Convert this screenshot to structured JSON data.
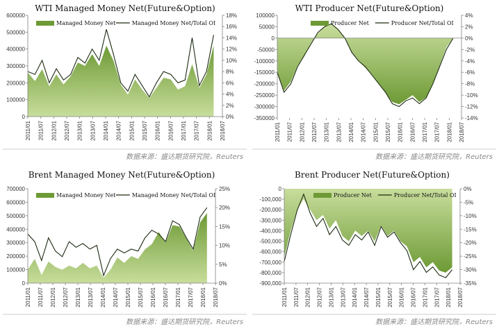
{
  "colors": {
    "area_light": "#c8dd9c",
    "area_dark": "#6d9a35",
    "line": "#1c2a12",
    "axis": "#808080",
    "divider": "#bdbdbd"
  },
  "chart_data": [
    {
      "type": "area",
      "title": "WTI Managed Money Net(Future&Option)",
      "legend": [
        "Managed Money Net",
        "Managed Money Net/Total OI"
      ],
      "source": "数据来源：盛达期货研究院，Reuters",
      "x": [
        "2011/01",
        "2011/07",
        "2012/01",
        "2012/07",
        "2013/01",
        "2013/07",
        "2014/01",
        "2014/07",
        "2015/01",
        "2015/07",
        "2016/01",
        "2016/07",
        "2017/01",
        "2017/07",
        "2018/01",
        "2018/07"
      ],
      "ylim_left": [
        0,
        600000
      ],
      "yticks_left": [
        "0",
        "100000",
        "200000",
        "300000",
        "400000",
        "500000",
        "600000"
      ],
      "ylim_right": [
        0,
        18
      ],
      "yticks_right": [
        "0%",
        "2%",
        "4%",
        "6%",
        "8%",
        "10%",
        "12%",
        "14%",
        "16%",
        "18%"
      ],
      "area_values": [
        260000,
        210000,
        280000,
        180000,
        250000,
        190000,
        240000,
        320000,
        300000,
        370000,
        300000,
        420000,
        330000,
        190000,
        130000,
        220000,
        160000,
        110000,
        170000,
        230000,
        220000,
        160000,
        180000,
        310000,
        170000,
        250000,
        420000
      ],
      "line_values": [
        8.0,
        7.5,
        10.0,
        6.0,
        8.5,
        6.5,
        7.5,
        10.5,
        9.5,
        12.0,
        10.0,
        15.5,
        11.0,
        6.0,
        4.5,
        7.5,
        5.5,
        3.5,
        6.0,
        8.0,
        7.5,
        6.0,
        6.5,
        14.0,
        5.5,
        8.0,
        14.5
      ]
    },
    {
      "type": "area",
      "title": "WTI Producer Net(Future&Option)",
      "legend": [
        "Producer Net",
        "Producer Net/Total OI"
      ],
      "source": "数据来源：盛达期货研究院，Reuters",
      "x": [
        "2011/01",
        "2011/07",
        "2012/01",
        "2012/07",
        "2013/01",
        "2013/07",
        "2014/01",
        "2014/07",
        "2015/01",
        "2015/07",
        "2016/01",
        "2016/07",
        "2017/01",
        "2017/07",
        "2018/01",
        "2018/07"
      ],
      "ylim_left": [
        -350000,
        100000
      ],
      "yticks_left": [
        "-350000",
        "-300000",
        "-250000",
        "-200000",
        "-150000",
        "-100000",
        "-50000",
        "0",
        "50000",
        "100000"
      ],
      "ylim_right": [
        -14,
        4
      ],
      "yticks_right": [
        "-14%",
        "-12%",
        "-10%",
        "-8%",
        "-6%",
        "-4%",
        "-2%",
        "0%",
        "2%",
        "4%"
      ],
      "area_values": [
        -150000,
        -230000,
        -190000,
        -120000,
        -80000,
        -20000,
        20000,
        50000,
        60000,
        40000,
        0,
        -60000,
        -100000,
        -130000,
        -160000,
        -200000,
        -240000,
        -280000,
        -290000,
        -270000,
        -250000,
        -280000,
        -260000,
        -200000,
        -120000,
        -40000,
        0
      ],
      "line_values": [
        -6.0,
        -9.5,
        -8.0,
        -5.0,
        -3.0,
        -1.0,
        1.0,
        2.0,
        2.5,
        1.5,
        0.0,
        -2.5,
        -4.0,
        -5.0,
        -6.5,
        -8.0,
        -9.5,
        -11.5,
        -12.0,
        -11.0,
        -10.5,
        -11.5,
        -10.5,
        -8.0,
        -5.0,
        -2.0,
        0.0
      ]
    },
    {
      "type": "area",
      "title": "Brent Managed Money Net(Future&Option)",
      "legend": [
        "Managed Money Net",
        "Managed Money Net/Total OI"
      ],
      "source": "数据来源：盛达期货研究院，Reuters",
      "x": [
        "2011/01",
        "2011/07",
        "2012/01",
        "2012/07",
        "2013/01",
        "2013/07",
        "2014/01",
        "2014/07",
        "2015/01",
        "2015/07",
        "2016/01",
        "2016/07",
        "2017/01",
        "2017/07",
        "2018/01",
        "2018/07"
      ],
      "ylim_left": [
        0,
        700000
      ],
      "yticks_left": [
        "0",
        "100000",
        "200000",
        "300000",
        "400000",
        "500000",
        "600000",
        "700000"
      ],
      "ylim_right": [
        0,
        25
      ],
      "yticks_right": [
        "0%",
        "5%",
        "10%",
        "15%",
        "20%",
        "25%"
      ],
      "area_values": [
        100000,
        180000,
        60000,
        160000,
        120000,
        100000,
        130000,
        110000,
        150000,
        110000,
        130000,
        40000,
        100000,
        190000,
        150000,
        200000,
        180000,
        250000,
        290000,
        380000,
        300000,
        430000,
        420000,
        330000,
        240000,
        450000,
        520000
      ],
      "line_values": [
        13.0,
        11.0,
        6.0,
        12.0,
        8.5,
        7.0,
        11.0,
        9.5,
        10.5,
        9.0,
        10.0,
        2.0,
        6.5,
        9.0,
        8.0,
        9.0,
        8.5,
        12.0,
        14.0,
        13.0,
        11.0,
        16.5,
        15.5,
        12.0,
        9.0,
        17.5,
        20.0
      ]
    },
    {
      "type": "area",
      "title": "Brent Producer Net(Future&Option)",
      "legend": [
        "Producer Net",
        "Producer Net/Total OI"
      ],
      "source": "数据来源：盛达期货研究院，Reuters",
      "x": [
        "2011/01",
        "2011/07",
        "2012/01",
        "2012/07",
        "2013/01",
        "2013/07",
        "2014/01",
        "2014/07",
        "2015/01",
        "2015/07",
        "2016/01",
        "2016/07",
        "2017/01",
        "2017/07",
        "2018/01",
        "2018/07"
      ],
      "ylim_left": [
        -900000,
        0
      ],
      "yticks_left": [
        "-900,000",
        "-800,000",
        "-700,000",
        "-600,000",
        "-500,000",
        "-400,000",
        "-300,000",
        "-200,000",
        "-100,000",
        "0"
      ],
      "ylim_right": [
        -35,
        0
      ],
      "yticks_right": [
        "-35%",
        "-30%",
        "-25%",
        "-20%",
        "-15%",
        "-10%",
        "-5%",
        "0%"
      ],
      "area_values": [
        -650000,
        -400000,
        -200000,
        -100000,
        -200000,
        -300000,
        -250000,
        -380000,
        -300000,
        -450000,
        -500000,
        -400000,
        -450000,
        -400000,
        -500000,
        -350000,
        -450000,
        -400000,
        -500000,
        -550000,
        -700000,
        -650000,
        -750000,
        -700000,
        -780000,
        -800000,
        -750000
      ],
      "line_values": [
        -27.0,
        -17.0,
        -8.0,
        -2.0,
        -9.0,
        -14.0,
        -11.0,
        -17.0,
        -14.0,
        -19.0,
        -21.0,
        -17.0,
        -19.0,
        -16.0,
        -21.0,
        -14.0,
        -18.0,
        -16.0,
        -20.0,
        -23.0,
        -30.0,
        -27.0,
        -31.0,
        -29.0,
        -32.0,
        -33.0,
        -30.0
      ]
    }
  ]
}
